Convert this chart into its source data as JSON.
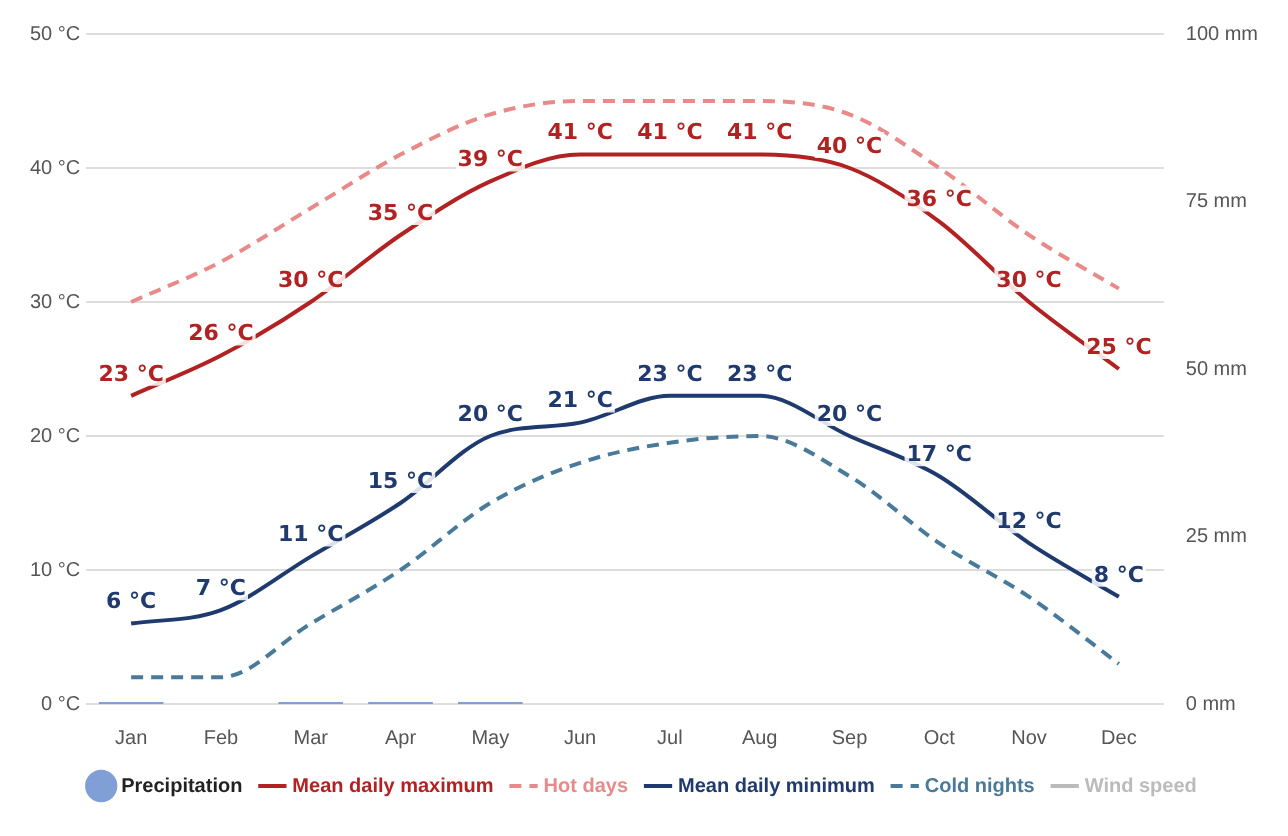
{
  "chart_data": {
    "type": "line",
    "categories": [
      "Jan",
      "Feb",
      "Mar",
      "Apr",
      "May",
      "Jun",
      "Jul",
      "Aug",
      "Sep",
      "Oct",
      "Nov",
      "Dec"
    ],
    "series": [
      {
        "name": "Precipitation",
        "type": "bar",
        "axis": "y2",
        "color": "#7f9fd6",
        "values": [
          0.3,
          0,
          0.3,
          0.3,
          0.3,
          0,
          0,
          0,
          0,
          0,
          0,
          0
        ]
      },
      {
        "name": "Mean daily maximum",
        "color": "#b22222",
        "line_style": "solid",
        "values": [
          23,
          26,
          30,
          35,
          39,
          41,
          41,
          41,
          40,
          36,
          30,
          25
        ],
        "value_labels": [
          "23 °C",
          "26 °C",
          "30 °C",
          "35 °C",
          "39 °C",
          "41 °C",
          "41 °C",
          "41 °C",
          "40 °C",
          "36 °C",
          "30 °C",
          "25 °C"
        ]
      },
      {
        "name": "Hot days",
        "color": "#e88a8a",
        "line_style": "dashed",
        "values": [
          30,
          33,
          37,
          41,
          44,
          45,
          45,
          45,
          44,
          40,
          35,
          31
        ]
      },
      {
        "name": "Mean daily minimum",
        "color": "#1f3a6e",
        "line_style": "solid",
        "values": [
          6,
          7,
          11,
          15,
          20,
          21,
          23,
          23,
          20,
          17,
          12,
          8
        ],
        "value_labels": [
          "6 °C",
          "7 °C",
          "11 °C",
          "15 °C",
          "20 °C",
          "21 °C",
          "23 °C",
          "23 °C",
          "20 °C",
          "17 °C",
          "12 °C",
          "8 °C"
        ]
      },
      {
        "name": "Cold nights",
        "color": "#4a7a9a",
        "line_style": "dashed",
        "values": [
          2,
          2,
          6,
          10,
          15,
          18,
          19.5,
          20,
          17,
          12,
          8,
          3
        ]
      },
      {
        "name": "Wind speed",
        "color": "#bbbbbb",
        "line_style": "solid",
        "values": [
          null,
          null,
          null,
          null,
          null,
          null,
          null,
          null,
          null,
          null,
          null,
          null
        ]
      }
    ],
    "ylim": [
      0,
      50
    ],
    "yticks": [
      {
        "value": 0,
        "label": "0 °C"
      },
      {
        "value": 10,
        "label": "10 °C"
      },
      {
        "value": 20,
        "label": "20 °C"
      },
      {
        "value": 30,
        "label": "30 °C"
      },
      {
        "value": 40,
        "label": "40 °C"
      },
      {
        "value": 50,
        "label": "50 °C"
      }
    ],
    "y2lim": [
      0,
      100
    ],
    "y2ticks": [
      {
        "value": 0,
        "label": "0 mm"
      },
      {
        "value": 25,
        "label": "25 mm"
      },
      {
        "value": 50,
        "label": "50 mm"
      },
      {
        "value": 75,
        "label": "75 mm"
      },
      {
        "value": 100,
        "label": "100 mm"
      }
    ],
    "grid": "y",
    "legend": "bottom",
    "marker": "none"
  }
}
